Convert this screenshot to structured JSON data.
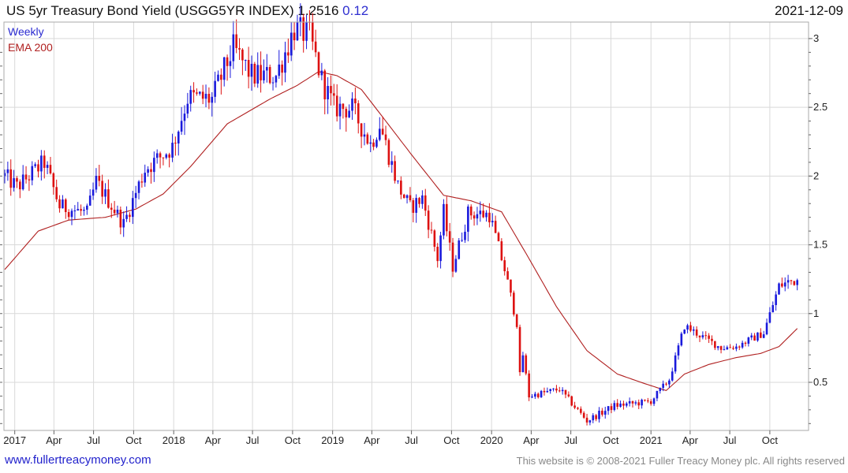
{
  "header": {
    "title": "US 5yr Treasury Bond Yield (USGG5YR INDEX)",
    "last": "1.2516",
    "change": "0.12",
    "date": "2021-12-09"
  },
  "footer": {
    "site_link": "www.fullertreacymoney.com",
    "copyright": "This website is © 2008-2021 Fuller Treacy Money plc. All rights reserved"
  },
  "colors": {
    "up": "#1a1adc",
    "down": "#dd1111",
    "ema": "#b02020",
    "grid": "#d9d9d9",
    "frame": "#aaaaaa"
  },
  "chart_data": {
    "type": "candlestick",
    "periodicity_label": "Weekly",
    "overlay_label": "EMA 200",
    "legend_position": "top-left",
    "grid": true,
    "ylim": [
      0.15,
      3.12
    ],
    "y_ticks": [
      "0.5",
      "1",
      "1.5",
      "2",
      "2.5",
      "3"
    ],
    "x_ticks": [
      "2017",
      "Apr",
      "Jul",
      "Oct",
      "2018",
      "Apr",
      "Jul",
      "Oct",
      "2019",
      "Apr",
      "Jul",
      "Oct",
      "2020",
      "Apr",
      "Jul",
      "Oct",
      "2021",
      "Apr",
      "Jul",
      "Oct"
    ],
    "x_range": [
      "2016-12-09",
      "2021-12-09"
    ],
    "price_anchors": [
      [
        "2016-12-09",
        2.0
      ],
      [
        "2017-01-06",
        1.92
      ],
      [
        "2017-03-10",
        2.1
      ],
      [
        "2017-04-14",
        1.78
      ],
      [
        "2017-06-16",
        1.73
      ],
      [
        "2017-07-07",
        1.96
      ],
      [
        "2017-09-08",
        1.65
      ],
      [
        "2017-10-27",
        2.05
      ],
      [
        "2017-12-29",
        2.21
      ],
      [
        "2018-02-02",
        2.57
      ],
      [
        "2018-03-30",
        2.56
      ],
      [
        "2018-05-18",
        2.93
      ],
      [
        "2018-06-29",
        2.73
      ],
      [
        "2018-08-24",
        2.73
      ],
      [
        "2018-10-05",
        3.07
      ],
      [
        "2018-11-09",
        3.02
      ],
      [
        "2018-12-07",
        2.7
      ],
      [
        "2019-01-04",
        2.5
      ],
      [
        "2019-02-15",
        2.49
      ],
      [
        "2019-03-29",
        2.23
      ],
      [
        "2019-04-19",
        2.38
      ],
      [
        "2019-05-31",
        1.93
      ],
      [
        "2019-06-28",
        1.77
      ],
      [
        "2019-07-26",
        1.84
      ],
      [
        "2019-08-30",
        1.4
      ],
      [
        "2019-09-13",
        1.74
      ],
      [
        "2019-10-04",
        1.34
      ],
      [
        "2019-11-08",
        1.73
      ],
      [
        "2019-12-27",
        1.72
      ],
      [
        "2020-01-31",
        1.32
      ],
      [
        "2020-02-28",
        0.93
      ],
      [
        "2020-03-06",
        0.55
      ],
      [
        "2020-03-13",
        0.7
      ],
      [
        "2020-03-27",
        0.4
      ],
      [
        "2020-06-05",
        0.45
      ],
      [
        "2020-08-07",
        0.22
      ],
      [
        "2020-10-09",
        0.33
      ],
      [
        "2020-12-31",
        0.36
      ],
      [
        "2021-02-12",
        0.52
      ],
      [
        "2021-03-19",
        0.91
      ],
      [
        "2021-04-09",
        0.87
      ],
      [
        "2021-06-11",
        0.75
      ],
      [
        "2021-07-16",
        0.76
      ],
      [
        "2021-09-17",
        0.86
      ],
      [
        "2021-10-22",
        1.2
      ],
      [
        "2021-11-12",
        1.23
      ],
      [
        "2021-12-09",
        1.25
      ]
    ],
    "ema_anchors": [
      [
        "2016-12-09",
        1.32
      ],
      [
        "2017-02-24",
        1.6
      ],
      [
        "2017-05-05",
        1.68
      ],
      [
        "2017-07-28",
        1.7
      ],
      [
        "2017-10-06",
        1.76
      ],
      [
        "2017-12-08",
        1.87
      ],
      [
        "2018-02-09",
        2.07
      ],
      [
        "2018-05-04",
        2.38
      ],
      [
        "2018-08-10",
        2.56
      ],
      [
        "2018-10-12",
        2.66
      ],
      [
        "2018-11-30",
        2.76
      ],
      [
        "2019-01-11",
        2.73
      ],
      [
        "2019-03-08",
        2.63
      ],
      [
        "2019-05-03",
        2.4
      ],
      [
        "2019-07-05",
        2.14
      ],
      [
        "2019-09-13",
        1.86
      ],
      [
        "2019-11-15",
        1.82
      ],
      [
        "2020-01-24",
        1.74
      ],
      [
        "2020-03-27",
        1.4
      ],
      [
        "2020-05-29",
        1.05
      ],
      [
        "2020-08-07",
        0.73
      ],
      [
        "2020-10-16",
        0.56
      ],
      [
        "2020-12-18",
        0.49
      ],
      [
        "2021-02-05",
        0.44
      ],
      [
        "2021-03-19",
        0.56
      ],
      [
        "2021-05-14",
        0.63
      ],
      [
        "2021-07-16",
        0.68
      ],
      [
        "2021-09-10",
        0.71
      ],
      [
        "2021-10-22",
        0.76
      ],
      [
        "2021-12-09",
        0.91
      ]
    ]
  }
}
